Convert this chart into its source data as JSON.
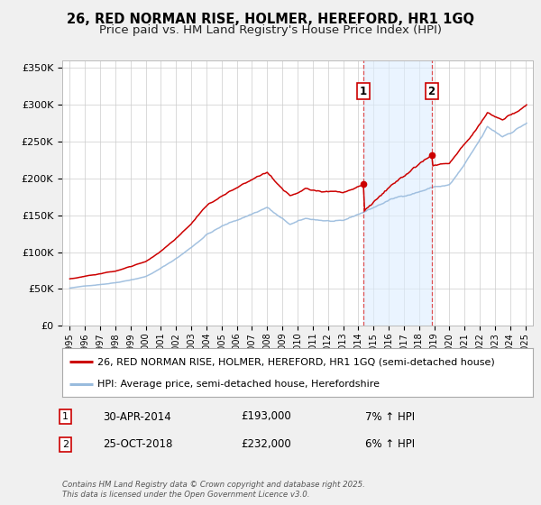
{
  "title": "26, RED NORMAN RISE, HOLMER, HEREFORD, HR1 1GQ",
  "subtitle": "Price paid vs. HM Land Registry's House Price Index (HPI)",
  "ylim": [
    0,
    360000
  ],
  "xlim_start": 1994.5,
  "xlim_end": 2025.5,
  "yticks": [
    0,
    50000,
    100000,
    150000,
    200000,
    250000,
    300000,
    350000
  ],
  "ytick_labels": [
    "£0",
    "£50K",
    "£100K",
    "£150K",
    "£200K",
    "£250K",
    "£300K",
    "£350K"
  ],
  "background_color": "#f0f0f0",
  "plot_background_color": "#ffffff",
  "grid_color": "#cccccc",
  "red_line_color": "#cc0000",
  "blue_line_color": "#99bbdd",
  "marker1_date_x": 2014.33,
  "marker1_y": 193000,
  "marker2_date_x": 2018.83,
  "marker2_y": 232000,
  "vline1_x": 2014.33,
  "vline2_x": 2018.83,
  "shade_color": "#ddeeff",
  "shade_alpha": 0.6,
  "legend_red_label": "26, RED NORMAN RISE, HOLMER, HEREFORD, HR1 1GQ (semi-detached house)",
  "legend_blue_label": "HPI: Average price, semi-detached house, Herefordshire",
  "annotation1_date": "30-APR-2014",
  "annotation1_price": "£193,000",
  "annotation1_hpi": "7% ↑ HPI",
  "annotation2_date": "25-OCT-2018",
  "annotation2_price": "£232,000",
  "annotation2_hpi": "6% ↑ HPI",
  "footer": "Contains HM Land Registry data © Crown copyright and database right 2025.\nThis data is licensed under the Open Government Licence v3.0.",
  "title_fontsize": 10.5,
  "subtitle_fontsize": 9.5,
  "tick_fontsize": 8,
  "legend_fontsize": 8,
  "annot_fontsize": 8.5
}
